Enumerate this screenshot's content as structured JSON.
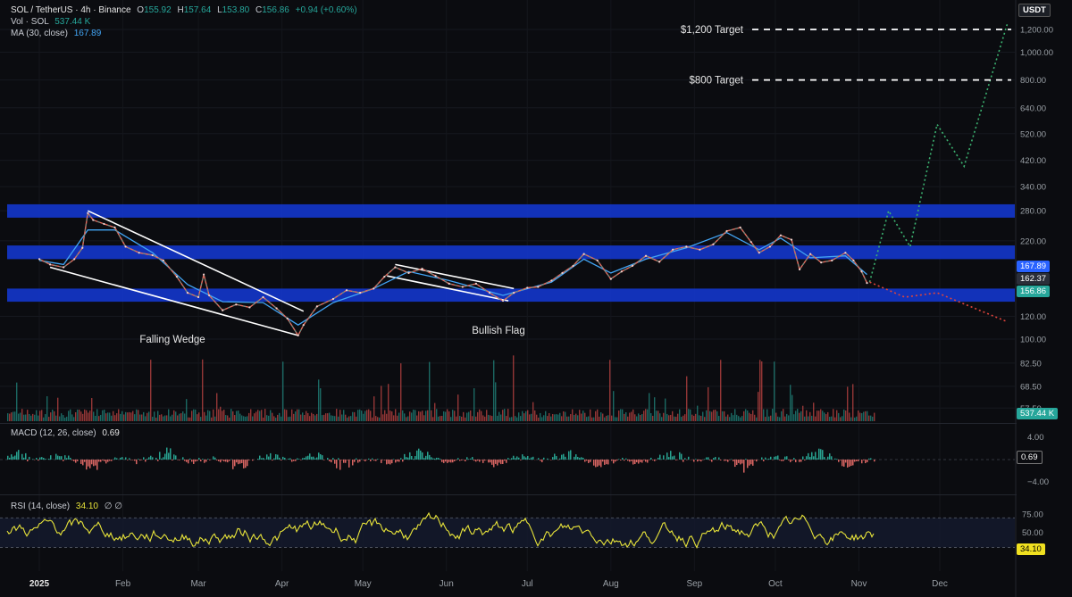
{
  "header": {
    "symbol": "SOL / TetherUS · 4h · Binance",
    "o_label": "O",
    "o": "155.92",
    "h_label": "H",
    "h": "157.64",
    "l_label": "L",
    "l": "153.80",
    "c_label": "C",
    "c": "156.86",
    "change": "+0.94 (+0.60%)",
    "vol_label": "Vol · SOL",
    "vol": "537.44 K",
    "ma_label": "MA (30, close)",
    "ma": "167.89",
    "currency": "USDT"
  },
  "colors": {
    "bg": "#0b0c10",
    "zone": "#1436c8",
    "up": "#26a69a",
    "down": "#ef5350",
    "ma": "#42a5f5",
    "rsi": "#e8e43a",
    "projection": "#3cb371",
    "bear": "#e0443c"
  },
  "badges": {
    "ma": "167.89",
    "last_close": "162.37",
    "price": "156.86",
    "volume": "537.44 K",
    "macd": "0.69",
    "rsi": "34.10"
  },
  "macd": {
    "label": "MACD (12, 26, close)",
    "value": "0.69",
    "ticks": [
      "4.00",
      "−4.00"
    ]
  },
  "rsi": {
    "label": "RSI (14, close)",
    "value": "34.10",
    "extra": "∅ ∅",
    "ticks": [
      "75.00",
      "50.00",
      "25.00"
    ]
  },
  "chart_data": {
    "type": "line",
    "title": "SOL / TetherUS · 4h · Binance",
    "y_scale": "log",
    "y_ticks": [
      "1,200.00",
      "1,000.00",
      "800.00",
      "640.00",
      "520.00",
      "420.00",
      "340.00",
      "280.00",
      "220.00",
      "120.00",
      "100.00",
      "82.50",
      "68.50",
      "57.50"
    ],
    "y_tick_values": [
      1200,
      1000,
      800,
      640,
      520,
      420,
      340,
      280,
      220,
      120,
      100,
      82.5,
      68.5,
      57.5
    ],
    "x_ticks": [
      "2025",
      "Feb",
      "Mar",
      "Apr",
      "May",
      "Jun",
      "Jul",
      "Aug",
      "Sep",
      "Oct",
      "Nov",
      "Dec"
    ],
    "x_tick_dates": [
      "2025-01-01",
      "2025-02-01",
      "2025-03-01",
      "2025-04-01",
      "2025-05-01",
      "2025-06-01",
      "2025-07-01",
      "2025-08-01",
      "2025-09-01",
      "2025-10-01",
      "2025-11-01",
      "2025-12-01"
    ],
    "price_series": {
      "name": "SOL / TetherUS",
      "points": [
        [
          "2025-01-01",
          190
        ],
        [
          "2025-01-05",
          182
        ],
        [
          "2025-01-10",
          178
        ],
        [
          "2025-01-14",
          190
        ],
        [
          "2025-01-17",
          208
        ],
        [
          "2025-01-19",
          275
        ],
        [
          "2025-01-21",
          260
        ],
        [
          "2025-01-25",
          252
        ],
        [
          "2025-01-29",
          245
        ],
        [
          "2025-02-02",
          210
        ],
        [
          "2025-02-07",
          200
        ],
        [
          "2025-02-12",
          196
        ],
        [
          "2025-02-16",
          188
        ],
        [
          "2025-02-21",
          165
        ],
        [
          "2025-02-25",
          145
        ],
        [
          "2025-03-01",
          140
        ],
        [
          "2025-03-03",
          168
        ],
        [
          "2025-03-05",
          142
        ],
        [
          "2025-03-10",
          126
        ],
        [
          "2025-03-15",
          132
        ],
        [
          "2025-03-20",
          129
        ],
        [
          "2025-03-25",
          140
        ],
        [
          "2025-03-30",
          128
        ],
        [
          "2025-04-03",
          118
        ],
        [
          "2025-04-07",
          103
        ],
        [
          "2025-04-09",
          112
        ],
        [
          "2025-04-14",
          130
        ],
        [
          "2025-04-20",
          138
        ],
        [
          "2025-04-25",
          148
        ],
        [
          "2025-04-30",
          145
        ],
        [
          "2025-05-05",
          150
        ],
        [
          "2025-05-09",
          165
        ],
        [
          "2025-05-13",
          178
        ],
        [
          "2025-05-18",
          170
        ],
        [
          "2025-05-23",
          176
        ],
        [
          "2025-05-28",
          166
        ],
        [
          "2025-06-02",
          156
        ],
        [
          "2025-06-07",
          152
        ],
        [
          "2025-06-12",
          156
        ],
        [
          "2025-06-17",
          145
        ],
        [
          "2025-06-22",
          136
        ],
        [
          "2025-06-26",
          145
        ],
        [
          "2025-07-01",
          151
        ],
        [
          "2025-07-05",
          152
        ],
        [
          "2025-07-10",
          160
        ],
        [
          "2025-07-14",
          170
        ],
        [
          "2025-07-18",
          180
        ],
        [
          "2025-07-22",
          198
        ],
        [
          "2025-07-27",
          188
        ],
        [
          "2025-08-01",
          162
        ],
        [
          "2025-08-05",
          172
        ],
        [
          "2025-08-09",
          180
        ],
        [
          "2025-08-14",
          195
        ],
        [
          "2025-08-19",
          186
        ],
        [
          "2025-08-24",
          205
        ],
        [
          "2025-08-29",
          210
        ],
        [
          "2025-09-03",
          205
        ],
        [
          "2025-09-08",
          214
        ],
        [
          "2025-09-13",
          238
        ],
        [
          "2025-09-18",
          245
        ],
        [
          "2025-09-22",
          218
        ],
        [
          "2025-09-25",
          200
        ],
        [
          "2025-09-29",
          210
        ],
        [
          "2025-10-03",
          230
        ],
        [
          "2025-10-07",
          222
        ],
        [
          "2025-10-10",
          175
        ],
        [
          "2025-10-14",
          198
        ],
        [
          "2025-10-18",
          185
        ],
        [
          "2025-10-22",
          188
        ],
        [
          "2025-10-27",
          200
        ],
        [
          "2025-10-30",
          188
        ],
        [
          "2025-11-02",
          172
        ],
        [
          "2025-11-04",
          156.86
        ]
      ]
    },
    "ma_series": {
      "name": "MA (30, close)",
      "points": [
        [
          "2025-01-01",
          188
        ],
        [
          "2025-01-10",
          182
        ],
        [
          "2025-01-19",
          240
        ],
        [
          "2025-01-29",
          240
        ],
        [
          "2025-02-12",
          200
        ],
        [
          "2025-02-25",
          155
        ],
        [
          "2025-03-10",
          135
        ],
        [
          "2025-03-25",
          134
        ],
        [
          "2025-04-07",
          112
        ],
        [
          "2025-04-20",
          134
        ],
        [
          "2025-05-05",
          150
        ],
        [
          "2025-05-18",
          172
        ],
        [
          "2025-06-02",
          160
        ],
        [
          "2025-06-22",
          142
        ],
        [
          "2025-07-10",
          158
        ],
        [
          "2025-07-22",
          190
        ],
        [
          "2025-08-01",
          170
        ],
        [
          "2025-08-14",
          190
        ],
        [
          "2025-08-29",
          208
        ],
        [
          "2025-09-13",
          235
        ],
        [
          "2025-09-25",
          205
        ],
        [
          "2025-10-03",
          225
        ],
        [
          "2025-10-14",
          192
        ],
        [
          "2025-10-27",
          195
        ],
        [
          "2025-11-04",
          167.89
        ]
      ]
    },
    "bullish_projection": [
      [
        "2025-11-05",
        158
      ],
      [
        "2025-11-12",
        280
      ],
      [
        "2025-11-20",
        210
      ],
      [
        "2025-11-30",
        560
      ],
      [
        "2025-12-10",
        400
      ],
      [
        "2025-12-26",
        1250
      ]
    ],
    "bearish_projection": [
      [
        "2025-11-05",
        158
      ],
      [
        "2025-11-18",
        140
      ],
      [
        "2025-11-30",
        145
      ],
      [
        "2025-12-26",
        115
      ]
    ],
    "zones": [
      {
        "low": 265,
        "high": 295
      },
      {
        "low": 190,
        "high": 212
      },
      {
        "low": 135,
        "high": 150
      }
    ],
    "targets": [
      {
        "label": "$1,200 Target",
        "value": 1200
      },
      {
        "label": "$800 Target",
        "value": 800
      }
    ],
    "patterns": [
      {
        "label": "Falling Wedge",
        "upper": [
          [
            "2025-01-19",
            280
          ],
          [
            "2025-04-09",
            125
          ]
        ],
        "lower": [
          [
            "2025-01-05",
            178
          ],
          [
            "2025-04-07",
            103
          ]
        ]
      },
      {
        "label": "Bullish Flag",
        "upper": [
          [
            "2025-05-13",
            182
          ],
          [
            "2025-06-26",
            150
          ]
        ],
        "lower": [
          [
            "2025-05-10",
            166
          ],
          [
            "2025-06-24",
            136
          ]
        ]
      }
    ],
    "grid": true
  }
}
